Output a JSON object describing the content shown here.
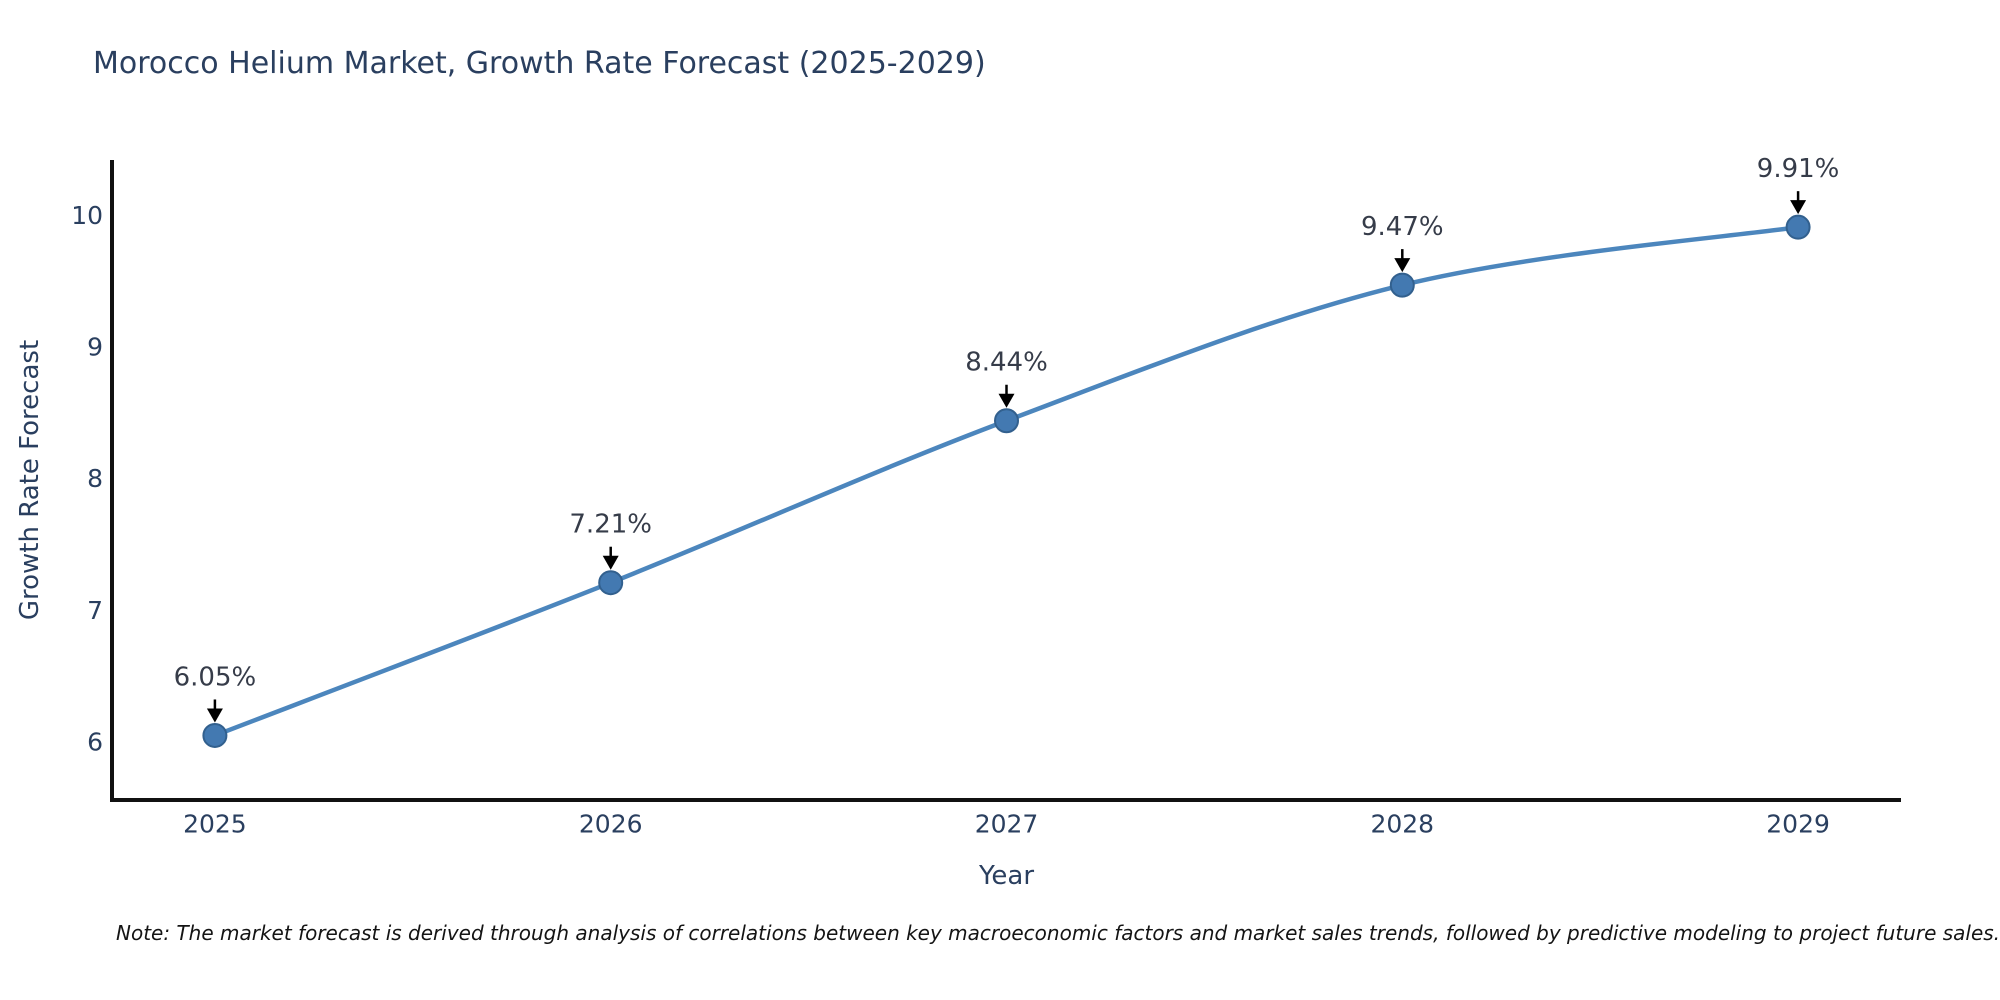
{
  "title": "Morocco Helium Market, Growth Rate Forecast (2025-2029)",
  "note": "Note: The market forecast is derived through analysis of correlations between key macroeconomic factors and market sales trends, followed by predictive modeling to project future sales.",
  "chart_data": {
    "type": "line",
    "title": "Morocco Helium Market, Growth Rate Forecast (2025-2029)",
    "x": [
      2025,
      2026,
      2027,
      2028,
      2029
    ],
    "series": [
      {
        "name": "Growth Rate Forecast",
        "values": [
          6.05,
          7.21,
          8.44,
          9.47,
          9.91
        ]
      }
    ],
    "point_labels": [
      "6.05%",
      "7.21%",
      "8.44%",
      "9.47%",
      "9.91%"
    ],
    "xlabel": "Year",
    "ylabel": "Growth Rate Forecast",
    "xticks": [
      2025,
      2026,
      2027,
      2028,
      2029
    ],
    "yticks": [
      6,
      7,
      8,
      9,
      10
    ],
    "xlim": [
      2024.74,
      2029.26
    ],
    "ylim": [
      5.56,
      10.42
    ],
    "grid": false,
    "legend_position": "none",
    "line_shape": "spline",
    "colors": {
      "line": "#4c86bd",
      "marker_fill": "#4379b1",
      "marker_stroke": "#32608e",
      "axis_line": "#111111",
      "tick_text": "#2a3f5f",
      "axis_title_text": "#2a3f5f",
      "annotation_text": "#363c49",
      "annotation_arrow": "#000000",
      "title_text": "#2a3f5f",
      "note_text": "#141414",
      "background": "#ffffff"
    }
  }
}
